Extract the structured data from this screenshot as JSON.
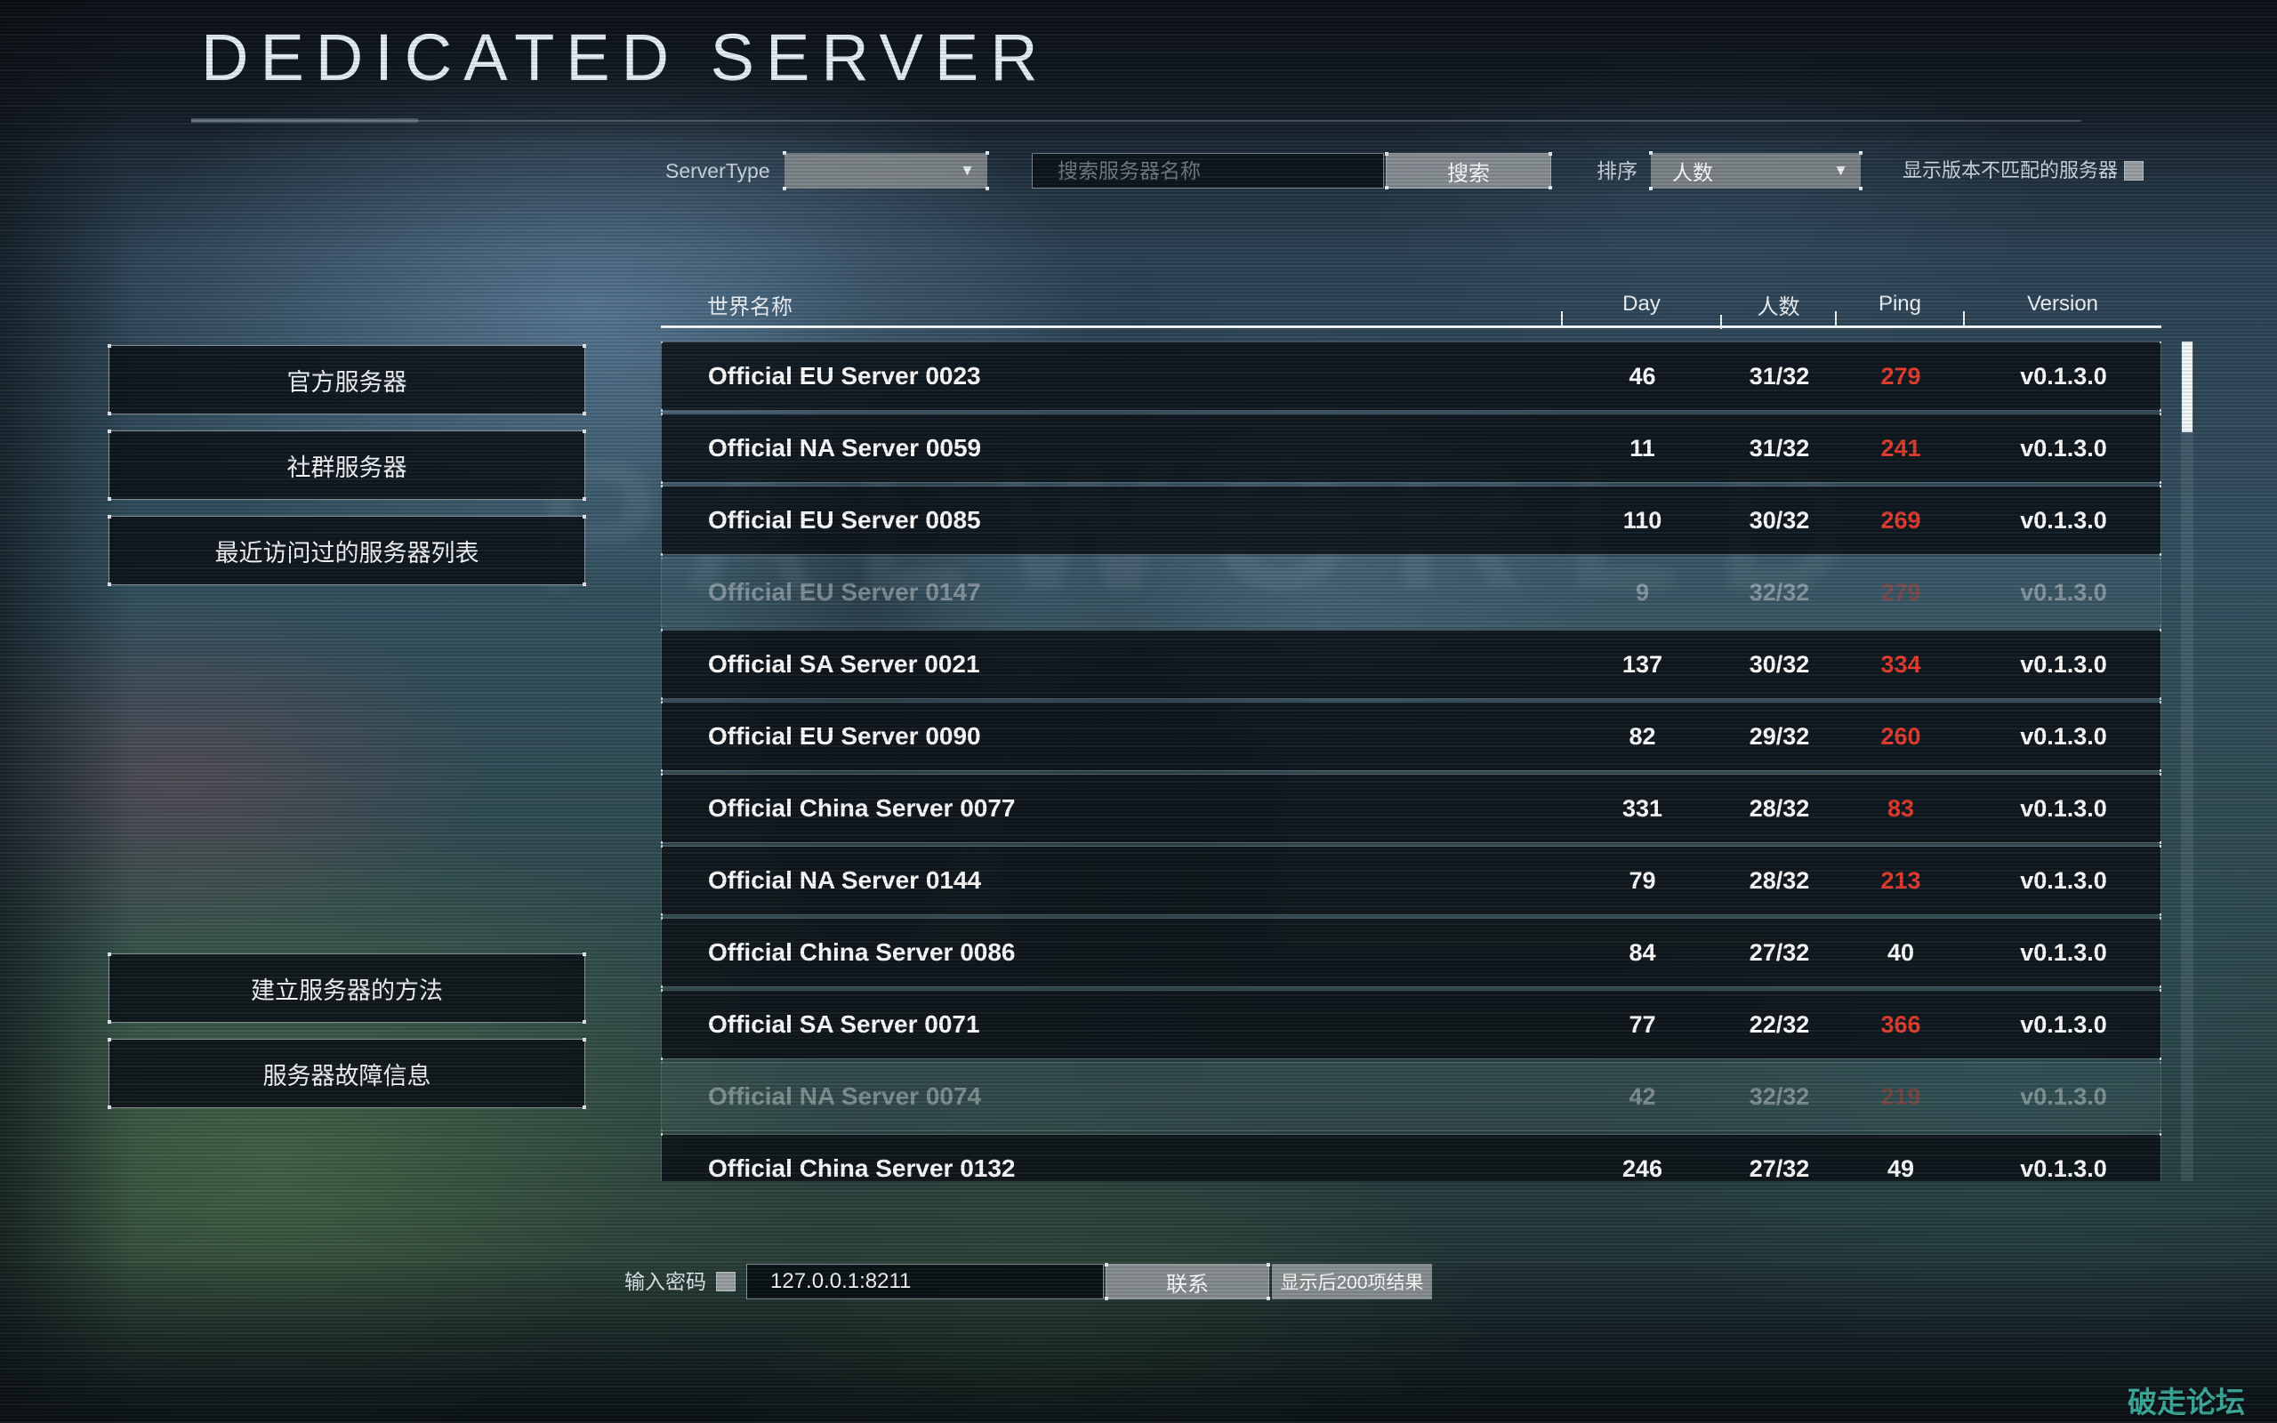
{
  "page": {
    "title": "DEDICATED SERVER",
    "background_watermark": "PALWORLD"
  },
  "filter_bar": {
    "server_type_label": "ServerType",
    "server_type_value": "",
    "search_placeholder": "搜索服务器名称",
    "search_button_label": "搜索",
    "sort_label": "排序",
    "sort_value": "人数",
    "show_mismatch_label": "显示版本不匹配的服务器",
    "show_mismatch_checked": false
  },
  "sidebar": {
    "top_buttons": [
      "官方服务器",
      "社群服务器",
      "最近访问过的服务器列表"
    ],
    "bottom_buttons": [
      "建立服务器的方法",
      "服务器故障信息"
    ]
  },
  "server_table": {
    "columns": [
      "世界名称",
      "Day",
      "人数",
      "Ping",
      "Version"
    ],
    "rows": [
      {
        "name": "Official EU Server 0023",
        "day": "46",
        "players": "31/32",
        "ping": "279",
        "ping_high": true,
        "version": "v0.1.3.0",
        "dimmed": false
      },
      {
        "name": "Official NA Server 0059",
        "day": "11",
        "players": "31/32",
        "ping": "241",
        "ping_high": true,
        "version": "v0.1.3.0",
        "dimmed": false
      },
      {
        "name": "Official EU Server 0085",
        "day": "110",
        "players": "30/32",
        "ping": "269",
        "ping_high": true,
        "version": "v0.1.3.0",
        "dimmed": false
      },
      {
        "name": "Official EU Server 0147",
        "day": "9",
        "players": "32/32",
        "ping": "279",
        "ping_high": true,
        "version": "v0.1.3.0",
        "dimmed": true
      },
      {
        "name": "Official SA Server 0021",
        "day": "137",
        "players": "30/32",
        "ping": "334",
        "ping_high": true,
        "version": "v0.1.3.0",
        "dimmed": false
      },
      {
        "name": "Official EU Server 0090",
        "day": "82",
        "players": "29/32",
        "ping": "260",
        "ping_high": true,
        "version": "v0.1.3.0",
        "dimmed": false
      },
      {
        "name": "Official China Server 0077",
        "day": "331",
        "players": "28/32",
        "ping": "83",
        "ping_high": true,
        "version": "v0.1.3.0",
        "dimmed": false
      },
      {
        "name": "Official NA Server 0144",
        "day": "79",
        "players": "28/32",
        "ping": "213",
        "ping_high": true,
        "version": "v0.1.3.0",
        "dimmed": false
      },
      {
        "name": "Official China Server 0086",
        "day": "84",
        "players": "27/32",
        "ping": "40",
        "ping_high": false,
        "version": "v0.1.3.0",
        "dimmed": false
      },
      {
        "name": "Official SA Server 0071",
        "day": "77",
        "players": "22/32",
        "ping": "366",
        "ping_high": true,
        "version": "v0.1.3.0",
        "dimmed": false
      },
      {
        "name": "Official NA Server 0074",
        "day": "42",
        "players": "32/32",
        "ping": "219",
        "ping_high": true,
        "version": "v0.1.3.0",
        "dimmed": true
      },
      {
        "name": "Official China Server 0132",
        "day": "246",
        "players": "27/32",
        "ping": "49",
        "ping_high": false,
        "version": "v0.1.3.0",
        "dimmed": false
      }
    ]
  },
  "bottom_bar": {
    "password_label": "输入密码",
    "password_checked": false,
    "address_value": "127.0.0.1:8211",
    "connect_button_label": "联系",
    "results_label": "显示后200项结果"
  },
  "watermark_text": "破走论坛",
  "icons": {
    "dropdown_caret": "▼"
  },
  "colors": {
    "ping_high": "#e23b2e",
    "watermark_teal": "#3aa89a",
    "accent_white": "#f2f7fa"
  }
}
